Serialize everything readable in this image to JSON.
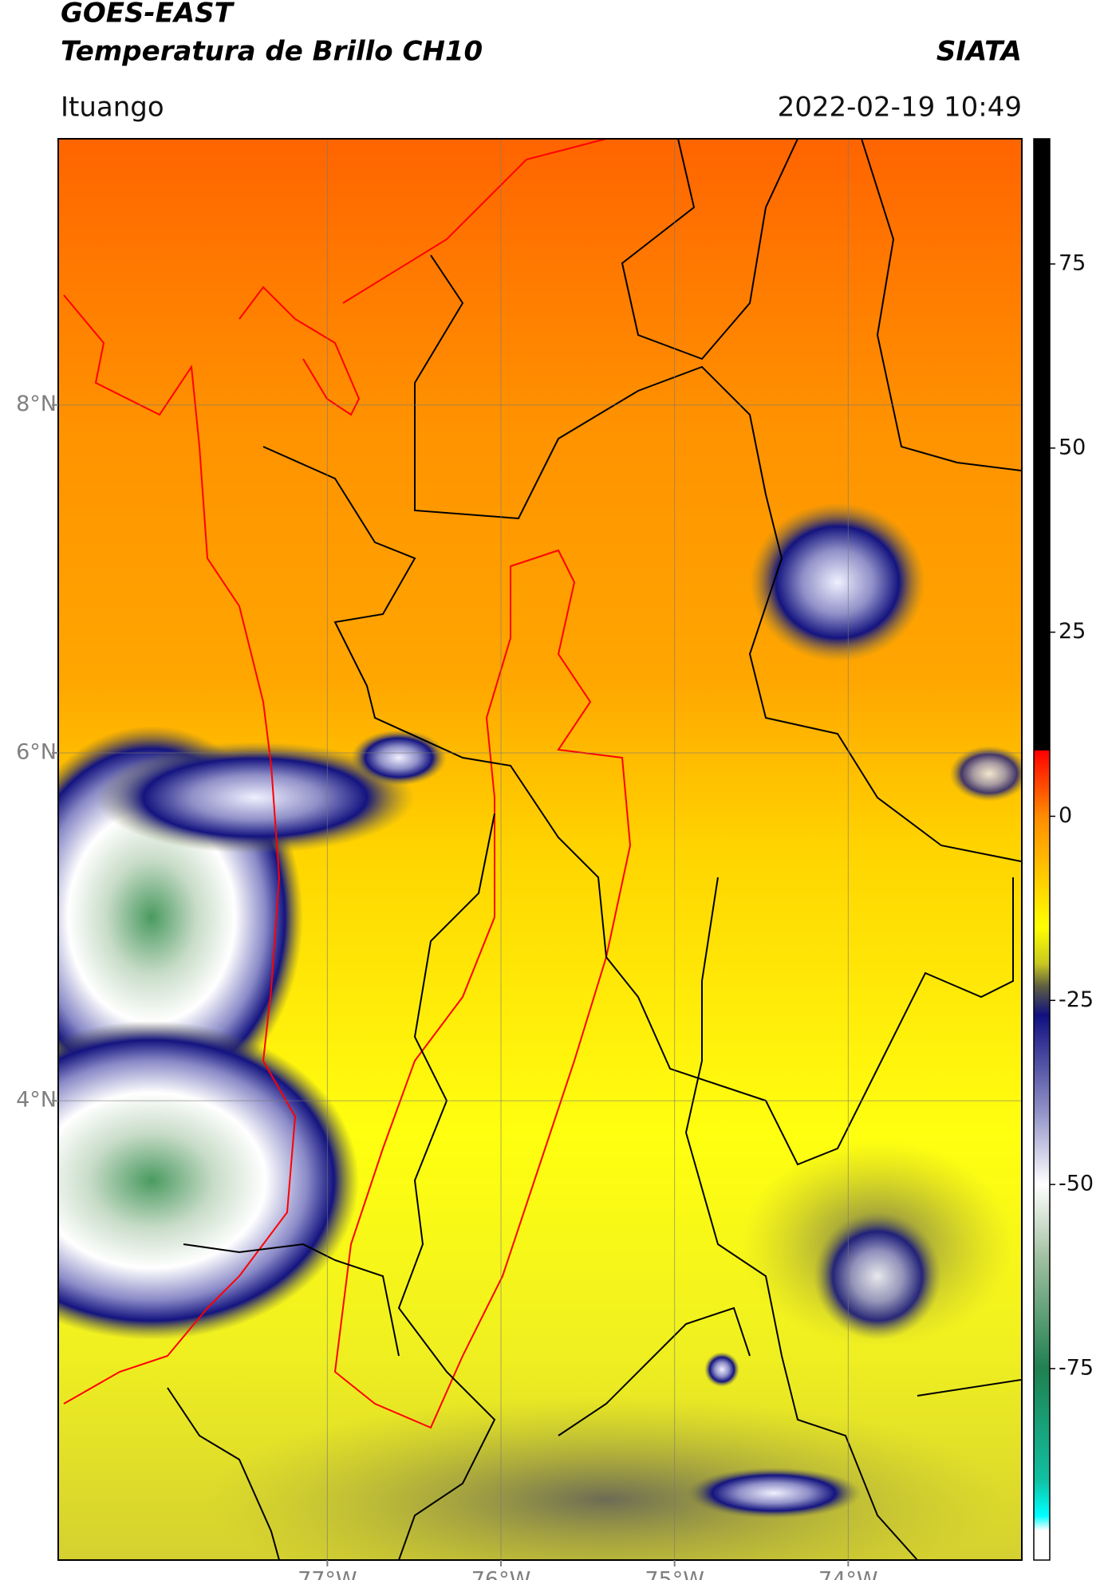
{
  "chart_data": {
    "type": "map",
    "title": "GOES-EAST",
    "subtitle": "Temperatura de Brillo CH10",
    "source": "SIATA",
    "location": "Ituango",
    "datetime": "2022-02-19 10:49",
    "xlim": [
      -78.55,
      -73.0
    ],
    "ylim": [
      1.36,
      9.53
    ],
    "xticks": [
      {
        "value": -77,
        "label": "77°W"
      },
      {
        "value": -76,
        "label": "76°W"
      },
      {
        "value": -75,
        "label": "75°W"
      },
      {
        "value": -74,
        "label": "74°W"
      }
    ],
    "yticks": [
      {
        "value": 8,
        "label": "8°N"
      },
      {
        "value": 6,
        "label": "6°N"
      },
      {
        "value": 4,
        "label": "4°N"
      }
    ],
    "grid": true,
    "colorbar": {
      "clim": [
        -101,
        92
      ],
      "ticks": [
        75,
        50,
        25,
        0,
        -25,
        -50,
        -75
      ],
      "stops": [
        {
          "value": 92,
          "color": "#000000"
        },
        {
          "value": 9,
          "color": "#000000"
        },
        {
          "value": 8.9,
          "color": "#ff0000"
        },
        {
          "value": 0,
          "color": "#ff8c00"
        },
        {
          "value": -15,
          "color": "#ffff00"
        },
        {
          "value": -20,
          "color": "#c8c820"
        },
        {
          "value": -23,
          "color": "#606040"
        },
        {
          "value": -27,
          "color": "#101080"
        },
        {
          "value": -40,
          "color": "#9090c8"
        },
        {
          "value": -50,
          "color": "#ffffff"
        },
        {
          "value": -60,
          "color": "#a0c0a0"
        },
        {
          "value": -75,
          "color": "#208050"
        },
        {
          "value": -90,
          "color": "#10c0a0"
        },
        {
          "value": -95,
          "color": "#00ffff"
        },
        {
          "value": -97,
          "color": "#ffffff"
        },
        {
          "value": -101,
          "color": "#ffffff"
        }
      ]
    }
  }
}
